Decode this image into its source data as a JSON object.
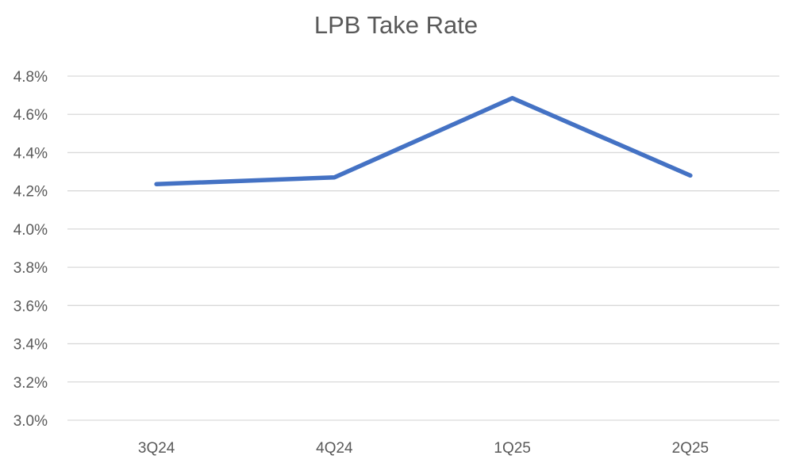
{
  "chart_data": {
    "type": "line",
    "title": "LPB Take Rate",
    "categories": [
      "3Q24",
      "4Q24",
      "1Q25",
      "2Q25"
    ],
    "series": [
      {
        "values": [
          4.235,
          4.27,
          4.685,
          4.28
        ]
      }
    ],
    "y_unit": "%",
    "ylim": [
      3.0,
      4.8
    ],
    "y_ticks": [
      "3.0%",
      "3.2%",
      "3.4%",
      "3.6%",
      "3.8%",
      "4.0%",
      "4.2%",
      "4.4%",
      "4.6%",
      "4.8%"
    ],
    "grid": true,
    "legend": "none",
    "colors": {
      "line": "#4472C4",
      "grid": "#D9D9D9",
      "text": "#595959"
    }
  }
}
